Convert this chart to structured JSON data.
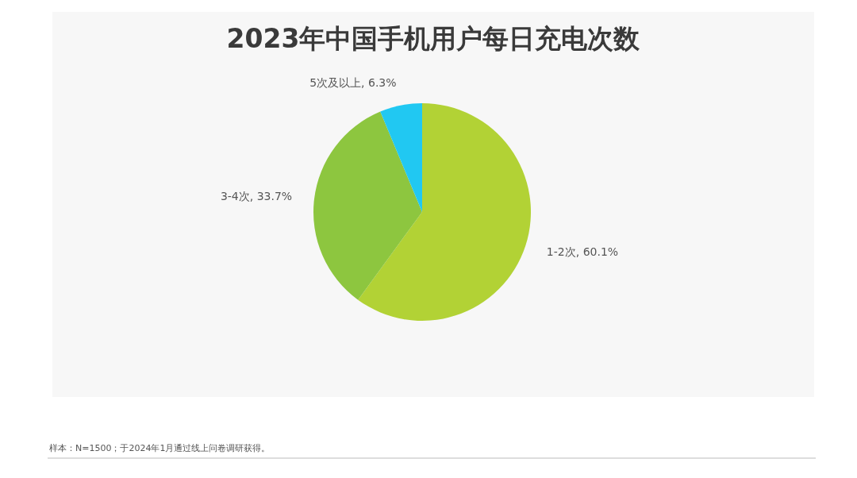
{
  "chart_data": {
    "type": "pie",
    "title": "2023年中国手机用户每日充电次数",
    "categories": [
      "1-2次",
      "3-4次",
      "5次及以上"
    ],
    "values": [
      60.1,
      33.7,
      6.3
    ],
    "value_labels": [
      "60.1%",
      "33.7%",
      "6.3%"
    ],
    "colors": [
      "#b2d235",
      "#8dc63f",
      "#21c8f2"
    ],
    "annotations": [
      "样本：N=1500；于2024年1月通过线上问卷调研获得。"
    ]
  }
}
